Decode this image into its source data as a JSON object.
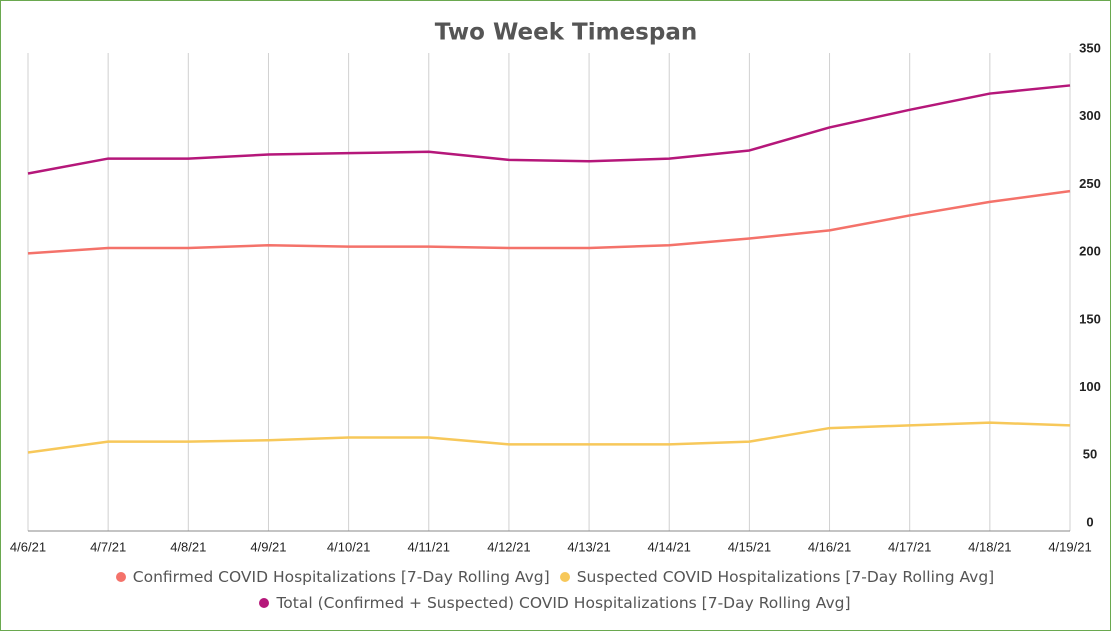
{
  "chart_data": {
    "type": "line",
    "title": "Two Week Timespan",
    "categories": [
      "4/6/21",
      "4/7/21",
      "4/8/21",
      "4/9/21",
      "4/10/21",
      "4/11/21",
      "4/12/21",
      "4/13/21",
      "4/14/21",
      "4/15/21",
      "4/16/21",
      "4/17/21",
      "4/18/21",
      "4/19/21"
    ],
    "series": [
      {
        "name": "Confirmed COVID Hospitalizations [7-Day Rolling Avg]",
        "color": "#f4726a",
        "values": [
          205,
          209,
          209,
          211,
          210,
          210,
          209,
          209,
          211,
          216,
          222,
          233,
          243,
          251
        ]
      },
      {
        "name": "Suspected COVID Hospitalizations [7-Day Rolling Avg]",
        "color": "#f7c85a",
        "values": [
          58,
          66,
          66,
          67,
          69,
          69,
          64,
          64,
          64,
          66,
          76,
          78,
          80,
          78
        ]
      },
      {
        "name": "Total (Confirmed + Suspected) COVID Hospitalizations [7-Day Rolling Avg]",
        "color": "#b5177a",
        "values": [
          264,
          275,
          275,
          278,
          279,
          280,
          274,
          273,
          275,
          281,
          298,
          311,
          323,
          329
        ]
      }
    ],
    "ylim": [
      0,
      350
    ],
    "yticks": [
      0,
      50,
      100,
      150,
      200,
      250,
      300,
      350
    ],
    "grid": true,
    "legend": "bottom"
  }
}
